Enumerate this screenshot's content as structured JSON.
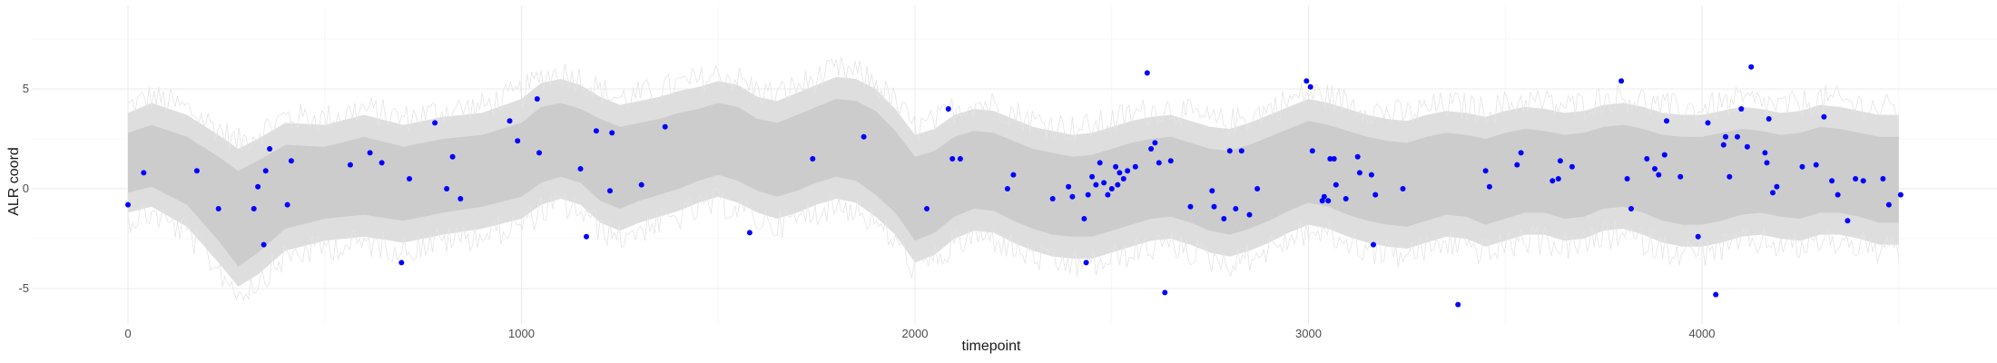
{
  "chart_data": {
    "type": "scatter",
    "title": "",
    "xlabel": "timepoint",
    "ylabel": "ALR coord",
    "xlim": [
      -300,
      4800
    ],
    "ylim": [
      -6.9,
      9.1
    ],
    "x_ticks": [
      0,
      1000,
      2000,
      3000,
      4000
    ],
    "x_tick_labels": [
      "0",
      "1000",
      "2000",
      "3000",
      "4000"
    ],
    "y_ticks": [
      5,
      0,
      -5
    ],
    "y_tick_labels": [
      "5",
      "0",
      "-5"
    ],
    "grid": true,
    "legend": "none",
    "colors": {
      "points": "#0000ff",
      "inner_band": "#cccccc",
      "outer_band": "#dedede",
      "jitter": "#e4e4e4"
    },
    "band_x": [
      0,
      60,
      150,
      230,
      280,
      330,
      400,
      500,
      600,
      700,
      800,
      900,
      1000,
      1050,
      1100,
      1150,
      1200,
      1250,
      1300,
      1350,
      1400,
      1450,
      1500,
      1550,
      1600,
      1650,
      1700,
      1750,
      1800,
      1850,
      1900,
      1950,
      2000,
      2050,
      2100,
      2150,
      2200,
      2250,
      2300,
      2350,
      2400,
      2450,
      2500,
      2550,
      2600,
      2650,
      2700,
      2750,
      2800,
      2850,
      2900,
      2950,
      3000,
      3050,
      3100,
      3150,
      3200,
      3250,
      3300,
      3350,
      3400,
      3450,
      3500,
      3550,
      3600,
      3650,
      3700,
      3750,
      3800,
      3850,
      3900,
      3950,
      4000,
      4050,
      4100,
      4150,
      4200,
      4250,
      4300,
      4350,
      4400,
      4450,
      4500
    ],
    "inner_band": {
      "upper": [
        2.8,
        3.2,
        2.6,
        1.6,
        0.9,
        1.4,
        2.2,
        2.1,
        2.6,
        2.1,
        2.5,
        2.7,
        3.3,
        4.1,
        4.3,
        4.0,
        3.5,
        3.1,
        3.3,
        3.5,
        3.8,
        4.0,
        4.3,
        4.1,
        3.5,
        3.3,
        3.7,
        4.1,
        4.5,
        4.4,
        3.9,
        2.9,
        1.6,
        1.9,
        2.6,
        2.9,
        2.8,
        2.4,
        2.0,
        1.8,
        1.6,
        1.7,
        2.0,
        2.3,
        2.5,
        2.6,
        2.3,
        2.0,
        1.9,
        2.2,
        2.6,
        3.0,
        3.4,
        3.2,
        2.9,
        2.6,
        2.4,
        2.3,
        2.6,
        2.8,
        2.7,
        2.5,
        2.8,
        3.0,
        2.9,
        2.7,
        2.8,
        3.1,
        3.2,
        3.0,
        2.7,
        2.6,
        2.6,
        2.8,
        3.0,
        2.9,
        2.7,
        2.8,
        3.1,
        3.0,
        2.8,
        2.6,
        2.6
      ],
      "lower": [
        -0.2,
        0.1,
        -0.8,
        -2.6,
        -3.9,
        -3.2,
        -2.0,
        -1.5,
        -1.3,
        -1.6,
        -1.2,
        -0.9,
        -0.4,
        0.3,
        0.6,
        0.3,
        -0.6,
        -1.0,
        -0.6,
        -0.3,
        0.0,
        0.4,
        0.7,
        0.4,
        -0.1,
        -0.4,
        -0.1,
        0.3,
        0.6,
        0.4,
        -0.3,
        -1.2,
        -2.6,
        -2.2,
        -1.4,
        -1.0,
        -1.1,
        -1.6,
        -2.0,
        -2.3,
        -2.4,
        -2.4,
        -2.1,
        -1.8,
        -1.5,
        -1.4,
        -1.7,
        -2.1,
        -2.3,
        -2.0,
        -1.6,
        -1.1,
        -0.7,
        -0.9,
        -1.3,
        -1.6,
        -1.8,
        -1.9,
        -1.6,
        -1.3,
        -1.4,
        -1.8,
        -1.5,
        -1.2,
        -1.2,
        -1.5,
        -1.4,
        -1.0,
        -0.9,
        -1.2,
        -1.6,
        -1.8,
        -1.8,
        -1.6,
        -1.3,
        -1.2,
        -1.4,
        -1.5,
        -1.2,
        -1.2,
        -1.4,
        -1.7,
        -1.7
      ]
    },
    "outer_band": {
      "upper": [
        3.8,
        4.3,
        3.7,
        2.7,
        2.0,
        2.5,
        3.3,
        3.2,
        3.7,
        3.2,
        3.6,
        3.8,
        4.5,
        5.3,
        5.5,
        5.2,
        4.6,
        4.2,
        4.4,
        4.6,
        4.9,
        5.1,
        5.4,
        5.2,
        4.6,
        4.4,
        4.8,
        5.2,
        5.6,
        5.5,
        5.0,
        4.0,
        2.7,
        3.0,
        3.7,
        4.0,
        3.9,
        3.5,
        3.1,
        2.9,
        2.7,
        2.8,
        3.1,
        3.4,
        3.6,
        3.7,
        3.4,
        3.1,
        3.0,
        3.3,
        3.7,
        4.1,
        4.5,
        4.3,
        4.0,
        3.7,
        3.5,
        3.4,
        3.7,
        3.9,
        3.8,
        3.6,
        3.9,
        4.1,
        4.0,
        3.8,
        3.9,
        4.2,
        4.3,
        4.1,
        3.8,
        3.7,
        3.7,
        3.9,
        4.1,
        4.0,
        3.8,
        3.9,
        4.2,
        4.1,
        3.9,
        3.7,
        3.7
      ],
      "lower": [
        -1.2,
        -0.9,
        -1.9,
        -3.7,
        -4.9,
        -4.3,
        -3.1,
        -2.6,
        -2.4,
        -2.7,
        -2.3,
        -2.0,
        -1.5,
        -0.8,
        -0.5,
        -0.8,
        -1.7,
        -2.1,
        -1.7,
        -1.4,
        -1.1,
        -0.7,
        -0.4,
        -0.7,
        -1.2,
        -1.5,
        -1.2,
        -0.8,
        -0.5,
        -0.7,
        -1.4,
        -2.3,
        -3.7,
        -3.3,
        -2.5,
        -2.1,
        -2.2,
        -2.7,
        -3.1,
        -3.4,
        -3.5,
        -3.5,
        -3.2,
        -2.9,
        -2.6,
        -2.5,
        -2.8,
        -3.2,
        -3.4,
        -3.1,
        -2.7,
        -2.2,
        -1.8,
        -2.0,
        -2.4,
        -2.7,
        -2.9,
        -3.0,
        -2.7,
        -2.4,
        -2.5,
        -2.9,
        -2.6,
        -2.3,
        -2.3,
        -2.6,
        -2.5,
        -2.1,
        -2.0,
        -2.3,
        -2.7,
        -2.9,
        -2.9,
        -2.7,
        -2.4,
        -2.3,
        -2.5,
        -2.6,
        -2.3,
        -2.3,
        -2.5,
        -2.8,
        -2.8
      ]
    },
    "points": [
      [
        0,
        -0.8
      ],
      [
        40,
        0.8
      ],
      [
        175,
        0.9
      ],
      [
        230,
        -1.0
      ],
      [
        320,
        -1.0
      ],
      [
        330,
        0.1
      ],
      [
        345,
        -2.8
      ],
      [
        350,
        0.9
      ],
      [
        360,
        2.0
      ],
      [
        405,
        -0.8
      ],
      [
        415,
        1.4
      ],
      [
        565,
        1.2
      ],
      [
        615,
        1.8
      ],
      [
        645,
        1.3
      ],
      [
        695,
        -3.7
      ],
      [
        715,
        0.5
      ],
      [
        780,
        3.3
      ],
      [
        810,
        0.0
      ],
      [
        825,
        1.6
      ],
      [
        845,
        -0.5
      ],
      [
        970,
        3.4
      ],
      [
        990,
        2.4
      ],
      [
        1040,
        4.5
      ],
      [
        1045,
        1.8
      ],
      [
        1150,
        1.0
      ],
      [
        1165,
        -2.4
      ],
      [
        1190,
        2.9
      ],
      [
        1225,
        -0.1
      ],
      [
        1230,
        2.8
      ],
      [
        1305,
        0.2
      ],
      [
        1365,
        3.1
      ],
      [
        1580,
        -2.2
      ],
      [
        1740,
        1.5
      ],
      [
        1870,
        2.6
      ],
      [
        2030,
        -1.0
      ],
      [
        2085,
        4.0
      ],
      [
        2095,
        1.5
      ],
      [
        2115,
        1.5
      ],
      [
        2235,
        0.0
      ],
      [
        2250,
        0.7
      ],
      [
        2350,
        -0.5
      ],
      [
        2390,
        0.1
      ],
      [
        2400,
        -0.4
      ],
      [
        2430,
        -1.5
      ],
      [
        2435,
        -3.7
      ],
      [
        2440,
        -0.3
      ],
      [
        2450,
        0.6
      ],
      [
        2460,
        0.2
      ],
      [
        2470,
        1.3
      ],
      [
        2480,
        0.3
      ],
      [
        2490,
        -0.3
      ],
      [
        2500,
        0.0
      ],
      [
        2510,
        1.1
      ],
      [
        2515,
        0.2
      ],
      [
        2520,
        0.8
      ],
      [
        2530,
        0.5
      ],
      [
        2540,
        0.9
      ],
      [
        2560,
        1.1
      ],
      [
        2590,
        5.8
      ],
      [
        2600,
        2.0
      ],
      [
        2610,
        2.3
      ],
      [
        2620,
        1.3
      ],
      [
        2635,
        -5.2
      ],
      [
        2650,
        1.4
      ],
      [
        2700,
        -0.9
      ],
      [
        2755,
        -0.1
      ],
      [
        2760,
        -0.9
      ],
      [
        2785,
        -1.5
      ],
      [
        2800,
        1.9
      ],
      [
        2815,
        -1.0
      ],
      [
        2830,
        1.9
      ],
      [
        2850,
        -1.3
      ],
      [
        2870,
        0.0
      ],
      [
        2995,
        5.4
      ],
      [
        3005,
        5.1
      ],
      [
        3010,
        1.9
      ],
      [
        3035,
        -0.6
      ],
      [
        3040,
        -0.4
      ],
      [
        3050,
        -0.6
      ],
      [
        3055,
        1.5
      ],
      [
        3065,
        1.5
      ],
      [
        3070,
        0.2
      ],
      [
        3095,
        -0.5
      ],
      [
        3125,
        1.6
      ],
      [
        3130,
        0.8
      ],
      [
        3160,
        0.7
      ],
      [
        3165,
        -2.8
      ],
      [
        3170,
        -0.3
      ],
      [
        3240,
        0.0
      ],
      [
        3380,
        -5.8
      ],
      [
        3450,
        0.9
      ],
      [
        3460,
        0.1
      ],
      [
        3530,
        1.2
      ],
      [
        3540,
        1.8
      ],
      [
        3620,
        0.4
      ],
      [
        3635,
        0.5
      ],
      [
        3640,
        1.4
      ],
      [
        3670,
        1.1
      ],
      [
        3795,
        5.4
      ],
      [
        3810,
        0.5
      ],
      [
        3820,
        -1.0
      ],
      [
        3860,
        1.5
      ],
      [
        3880,
        1.0
      ],
      [
        3890,
        0.7
      ],
      [
        3905,
        1.7
      ],
      [
        3910,
        3.4
      ],
      [
        3945,
        0.6
      ],
      [
        3990,
        -2.4
      ],
      [
        4015,
        3.3
      ],
      [
        4035,
        -5.3
      ],
      [
        4055,
        2.2
      ],
      [
        4060,
        2.6
      ],
      [
        4070,
        0.6
      ],
      [
        4090,
        2.6
      ],
      [
        4100,
        4.0
      ],
      [
        4115,
        2.1
      ],
      [
        4125,
        6.1
      ],
      [
        4160,
        1.8
      ],
      [
        4165,
        1.3
      ],
      [
        4170,
        3.5
      ],
      [
        4180,
        -0.2
      ],
      [
        4190,
        0.1
      ],
      [
        4255,
        1.1
      ],
      [
        4290,
        1.2
      ],
      [
        4310,
        3.6
      ],
      [
        4330,
        0.4
      ],
      [
        4345,
        -0.3
      ],
      [
        4370,
        -1.6
      ],
      [
        4390,
        0.5
      ],
      [
        4410,
        0.4
      ],
      [
        4460,
        0.5
      ],
      [
        4475,
        -0.8
      ],
      [
        4505,
        -0.3
      ]
    ]
  }
}
